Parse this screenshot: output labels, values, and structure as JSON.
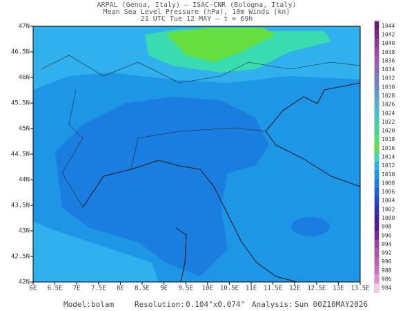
{
  "header": {
    "lines": [
      "ARPAL (Genoa, Italy)  –  ISAC-CNR (Bologna, Italy)",
      "Mean Sea Level Pressure (hPa), 10m Winds (kn)",
      "21 UTC Tue 12 MAY  –  τ = 69h"
    ]
  },
  "map": {
    "xticks": [
      "6E",
      "6.5E",
      "7E",
      "7.5E",
      "8E",
      "8.5E",
      "9E",
      "9.5E",
      "10E",
      "10.5E",
      "11E",
      "11.5E",
      "12E",
      "12.5E",
      "13E",
      "13.5E"
    ],
    "yticks": [
      "47N",
      "46.5N",
      "46N",
      "45.5N",
      "45N",
      "44.5N",
      "44N",
      "43.5N",
      "43N",
      "42.5N",
      "42N"
    ]
  },
  "legend": {
    "levels": [
      {
        "label": 1044,
        "color": "#6a1b6a"
      },
      {
        "label": 1042,
        "color": "#7b2a80"
      },
      {
        "label": 1040,
        "color": "#8c3a96"
      },
      {
        "label": 1038,
        "color": "#9c4aa8"
      },
      {
        "label": 1036,
        "color": "#a05ab0"
      },
      {
        "label": 1034,
        "color": "#8a6ab8"
      },
      {
        "label": 1032,
        "color": "#7a7ac0"
      },
      {
        "label": 1030,
        "color": "#6a8ac8"
      },
      {
        "label": 1028,
        "color": "#5aa0d0"
      },
      {
        "label": 1026,
        "color": "#50b0d8"
      },
      {
        "label": 1024,
        "color": "#48c0d0"
      },
      {
        "label": 1022,
        "color": "#40d0b0"
      },
      {
        "label": 1020,
        "color": "#40d890"
      },
      {
        "label": 1018,
        "color": "#50e070"
      },
      {
        "label": 1016,
        "color": "#66e040"
      },
      {
        "label": 1014,
        "color": "#38dcb0"
      },
      {
        "label": 1012,
        "color": "#30b0ec"
      },
      {
        "label": 1010,
        "color": "#1e96e6"
      },
      {
        "label": 1008,
        "color": "#1a7ee0"
      },
      {
        "label": 1006,
        "color": "#1a60d8"
      },
      {
        "label": 1004,
        "color": "#2048c8"
      },
      {
        "label": 1002,
        "color": "#3030b0"
      },
      {
        "label": 1000,
        "color": "#4020a0"
      },
      {
        "label": 998,
        "color": "#5a1a98"
      },
      {
        "label": 996,
        "color": "#7a2a9a"
      },
      {
        "label": 994,
        "color": "#9a40a0"
      },
      {
        "label": 992,
        "color": "#b050a8"
      },
      {
        "label": 990,
        "color": "#c060b0"
      },
      {
        "label": 988,
        "color": "#d070c0"
      },
      {
        "label": 986,
        "color": "#e090d0"
      },
      {
        "label": 984,
        "color": "#f0d0e8"
      }
    ]
  },
  "footer": {
    "model_label": "Model:",
    "model": "bolam",
    "resolution_label": "Resolution:",
    "resolution": "0.104°x0.074°",
    "analysis_label": "Analysis:",
    "analysis": "Sun 00Z10MAY2026"
  }
}
